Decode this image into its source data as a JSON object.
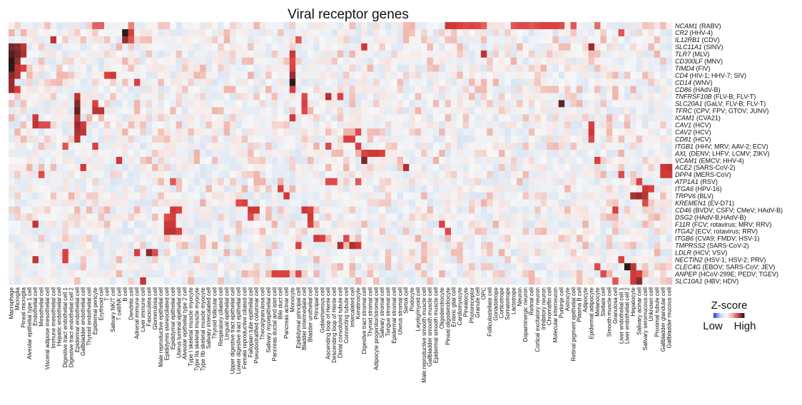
{
  "chart_data": {
    "type": "heatmap",
    "title": "Viral receptor genes",
    "rows": [
      {
        "gene": "NCAM1",
        "virus": "(RABV)"
      },
      {
        "gene": "CR2",
        "virus": "(HHV-4)"
      },
      {
        "gene": "IL12RB1",
        "virus": "(CDV)"
      },
      {
        "gene": "SLC11A1",
        "virus": "(SINV)"
      },
      {
        "gene": "TLR7",
        "virus": "(MLV)"
      },
      {
        "gene": "CD300LF",
        "virus": "(MNV)"
      },
      {
        "gene": "TIMD4",
        "virus": "(FIV)"
      },
      {
        "gene": "CD4",
        "virus": "(HIV-1; HHV-7; SIV)"
      },
      {
        "gene": "CD14",
        "virus": "(WNV)"
      },
      {
        "gene": "CD86",
        "virus": "(HAdV-B)"
      },
      {
        "gene": "TNFRSF10B",
        "virus": "(FLV-B; FLV-T)"
      },
      {
        "gene": "SLC20A1",
        "virus": "(GaLV; FLV-B; FLV-T)"
      },
      {
        "gene": "TFRC",
        "virus": "(CPV; FPV; GTOV; JUNV)"
      },
      {
        "gene": "ICAM1",
        "virus": "(CVA21)"
      },
      {
        "gene": "CAV1",
        "virus": "(HCV)"
      },
      {
        "gene": "CAV2",
        "virus": "(HCV)"
      },
      {
        "gene": "CD81",
        "virus": "(HCV)"
      },
      {
        "gene": "ITGB1",
        "virus": "(HHV; MRV; AAV-2; ECV)"
      },
      {
        "gene": "AXL",
        "virus": "(DENV; LHFV; LCMV; ZIKV)"
      },
      {
        "gene": "VCAM1",
        "virus": "(EMCV; HHV-4)"
      },
      {
        "gene": "ACE2",
        "virus": "(SARS-CoV-2)"
      },
      {
        "gene": "DPP4",
        "virus": "(MERS-CoV)"
      },
      {
        "gene": "ATP1A1",
        "virus": "(RSV)"
      },
      {
        "gene": "ITGA6",
        "virus": "(HPV-16)"
      },
      {
        "gene": "TRPV6",
        "virus": "(BLV)"
      },
      {
        "gene": "KREMEN1",
        "virus": "(EV-D71)"
      },
      {
        "gene": "CD46",
        "virus": "(BVDV; CSFV; CMeV; HAdV-B)"
      },
      {
        "gene": "DSG2",
        "virus": "(HAdV-B,HAdV-B)"
      },
      {
        "gene": "F11R",
        "virus": "(FCV; rotavirus; MRV; RRV)"
      },
      {
        "gene": "ITGA2",
        "virus": "(ECV; rotavirus; RRV)"
      },
      {
        "gene": "ITGB6",
        "virus": "(CVA9; FMDV; HSV-1)"
      },
      {
        "gene": "TMPRSS2",
        "virus": "(SARS-CoV-2)"
      },
      {
        "gene": "LDLR",
        "virus": "(HCV; VSV)"
      },
      {
        "gene": "NECTIN2",
        "virus": "(HSV-1; HSV-2; PRV)"
      },
      {
        "gene": "CLEC4G",
        "virus": "(EBOV; SARS-CoV; JEV)"
      },
      {
        "gene": "ANPEP",
        "virus": "(HCoV-299E; PEDV; TGEV)"
      },
      {
        "gene": "SLC10A1",
        "virus": "(HBV; HDV)"
      }
    ],
    "columns": [
      "Macrophage",
      "Microglia",
      "Pineal microglia",
      "Alveolar epithelial type 1 cell",
      "Endothelial cell",
      "Mesothelial cell",
      "Visceral adipose mesothelial cell",
      "Immune mesothelial cell",
      "Hepatic endothelial cell",
      "Digestive tract endothelial cell 1",
      "Digestive tract endothelial cell 2",
      "Epidermal endothelial cell",
      "Gallbladder endothelial cell",
      "Thyroid endothelial cell",
      "Epidermal pericyte",
      "Erythroid cell",
      "T cell",
      "Salivary NK/T cell",
      "T cell/NK cell",
      "B cell",
      "Dendritic cell",
      "Adrenal immune cell",
      "Liver immune cell",
      "Fasciculata cell",
      "Glomerulosa cell",
      "Male reproductive epithelial cell",
      "Epididymis stereociliated cell",
      "Epididymal epithelial cell",
      "Uterus luminal epithelial cell",
      "Alveolar epithelial type 2 cell",
      "Type I skeletal muscle myocyte",
      "Type IIa skeletal muscle myocyte",
      "Type IIb skeletal muscle myocyte",
      "Salivary intercalated cell",
      "Thyroid follicular cell",
      "Respiratory ciliated cell",
      "Lingual epithelial cell",
      "Upper digestive tract epithelial cell",
      "Lower digestive tract epithelial cell",
      "Female reproductive ciliated cell",
      "Fallopian tube epithelial cell",
      "Pseudostratified columnar cell",
      "Theca/granulosa cell",
      "Salivary myoepithelial cell",
      "Pancreas ductal and islet cell",
      "Bile duct cell",
      "Pancreas acinar cell",
      "Monocyte",
      "Epididymal principal cell",
      "Bladder intermediate cell",
      "Bladder urothelial cell",
      "Principal cell",
      "Goblet/serous cell",
      "Ascending loop of Henle cell",
      "Descending loop of Henle cell",
      "Distal convoluted tubule cell",
      "Connecting tubule cell",
      "Intercalated cell",
      "Keratinocyte",
      "Digestive tract stromal cell",
      "Thyroid stromal cell",
      "Adipocyte progenitor/stromal cell",
      "Salivary stromal cell",
      "Tongue stromal cell",
      "Epidermal stromal cell",
      "Uterus stromal cell",
      "Sertoli cell",
      "Podocyte",
      "Leydig/myoid cell",
      "Male reproductive smooth muscle cell",
      "Gallbladder smooth muscle cell",
      "Epidermal smooth muscle cell",
      "Oligodendrocyte",
      "Pineal oligodendrocyte",
      "Enteric glial cell",
      "Cardiomyocyte",
      "Pinealocyte",
      "Photoreceptor",
      "Granule cell",
      "OPC",
      "Folliculostellate cell",
      "Gonadotrope",
      "Corticotrope",
      "Somatotrope",
      "Lactotrope",
      "Neuron",
      "Dopaminergic neuron",
      "Retinal cell",
      "Cortical excitatory neuron",
      "Inhibitory neuron",
      "Chromaffin cell",
      "Molecular interneuron",
      "Purkinje cell",
      "Astrocyte",
      "Retinal pigment epithelial cell",
      "Plasma B cell",
      "Adipocyte",
      "Epidermal adipocyte",
      "Melanocyte",
      "Stellate cell",
      "Smooth muscle cell",
      "Granulosa cell",
      "Liver endothelial cell 1",
      "Liver endothelial cell 2",
      "Hepatocyte",
      "Salivary acinar cell",
      "Salivary seromucous cell",
      "Unknown cell",
      "Proximal tubule cell",
      "Gallbladder glandular cell",
      "Gallbladder mucous cell"
    ],
    "colorbar": {
      "title": "Z-score",
      "low_label": "Low",
      "high_label": "High",
      "colors": [
        "#3b34e0",
        "#c8daf0",
        "#f7f7f7",
        "#f0b2a8",
        "#d93a3a",
        "#2b1a1a"
      ]
    },
    "highlights": [
      {
        "r": 0,
        "c": 14,
        "v": 0.35
      },
      {
        "r": 0,
        "c": 15,
        "v": 0.35
      },
      {
        "r": 0,
        "c": 20,
        "v": 0.2
      },
      {
        "r": 0,
        "c": 73,
        "v": 0.55
      },
      {
        "r": 0,
        "c": 74,
        "v": 0.55
      },
      {
        "r": 0,
        "c": 75,
        "v": 0.5
      },
      {
        "r": 0,
        "c": 76,
        "v": 0.45
      },
      {
        "r": 0,
        "c": 77,
        "v": 0.5
      },
      {
        "r": 0,
        "c": 78,
        "v": 0.45
      },
      {
        "r": 0,
        "c": 79,
        "v": 0.35
      },
      {
        "r": 0,
        "c": 84,
        "v": 0.4
      },
      {
        "r": 0,
        "c": 85,
        "v": 0.45
      },
      {
        "r": 0,
        "c": 86,
        "v": 0.45
      },
      {
        "r": 0,
        "c": 87,
        "v": 0.4
      },
      {
        "r": 0,
        "c": 88,
        "v": 0.45
      },
      {
        "r": 0,
        "c": 89,
        "v": 0.5
      },
      {
        "r": 0,
        "c": 90,
        "v": 0.5
      },
      {
        "r": 0,
        "c": 91,
        "v": 0.5
      },
      {
        "r": 0,
        "c": 92,
        "v": 0.45
      },
      {
        "r": 0,
        "c": 94,
        "v": 0.4
      },
      {
        "r": 0,
        "c": 98,
        "v": 0.3
      },
      {
        "r": 1,
        "c": 19,
        "v": 1.0
      },
      {
        "r": 1,
        "c": 20,
        "v": 0.5
      },
      {
        "r": 1,
        "c": 102,
        "v": 0.4
      },
      {
        "r": 2,
        "c": 7,
        "v": 0.6
      },
      {
        "r": 2,
        "c": 19,
        "v": 0.7
      },
      {
        "r": 2,
        "c": 20,
        "v": 0.4
      },
      {
        "r": 2,
        "c": 48,
        "v": 0.4
      },
      {
        "r": 3,
        "c": 0,
        "v": 0.8
      },
      {
        "r": 3,
        "c": 1,
        "v": 0.75
      },
      {
        "r": 3,
        "c": 2,
        "v": 0.6
      },
      {
        "r": 3,
        "c": 59,
        "v": 0.55
      },
      {
        "r": 3,
        "c": 97,
        "v": 0.7
      },
      {
        "r": 4,
        "c": 0,
        "v": 0.9
      },
      {
        "r": 4,
        "c": 1,
        "v": 0.8
      },
      {
        "r": 4,
        "c": 2,
        "v": 0.65
      },
      {
        "r": 4,
        "c": 47,
        "v": 0.55
      },
      {
        "r": 4,
        "c": 79,
        "v": 0.6
      },
      {
        "r": 5,
        "c": 0,
        "v": 1.0
      },
      {
        "r": 5,
        "c": 1,
        "v": 0.7
      },
      {
        "r": 5,
        "c": 47,
        "v": 0.45
      },
      {
        "r": 6,
        "c": 0,
        "v": 1.0
      },
      {
        "r": 6,
        "c": 1,
        "v": 0.6
      },
      {
        "r": 6,
        "c": 2,
        "v": 0.5
      },
      {
        "r": 6,
        "c": 47,
        "v": 0.5
      },
      {
        "r": 7,
        "c": 0,
        "v": 0.75
      },
      {
        "r": 7,
        "c": 1,
        "v": 0.6
      },
      {
        "r": 7,
        "c": 16,
        "v": 0.5
      },
      {
        "r": 7,
        "c": 17,
        "v": 0.55
      },
      {
        "r": 7,
        "c": 47,
        "v": 0.7
      },
      {
        "r": 8,
        "c": 0,
        "v": 0.7
      },
      {
        "r": 8,
        "c": 47,
        "v": 1.0
      },
      {
        "r": 8,
        "c": 21,
        "v": 0.5
      },
      {
        "r": 9,
        "c": 0,
        "v": 0.7
      },
      {
        "r": 9,
        "c": 1,
        "v": 0.5
      },
      {
        "r": 9,
        "c": 47,
        "v": 0.5
      },
      {
        "r": 10,
        "c": 11,
        "v": 0.6
      },
      {
        "r": 10,
        "c": 49,
        "v": 0.45
      },
      {
        "r": 10,
        "c": 53,
        "v": 0.65
      },
      {
        "r": 10,
        "c": 55,
        "v": 0.5
      },
      {
        "r": 11,
        "c": 11,
        "v": 0.75
      },
      {
        "r": 11,
        "c": 14,
        "v": 0.5
      },
      {
        "r": 11,
        "c": 92,
        "v": 0.85
      },
      {
        "r": 11,
        "c": 49,
        "v": 0.5
      },
      {
        "r": 12,
        "c": 11,
        "v": 0.85
      },
      {
        "r": 12,
        "c": 14,
        "v": 0.6
      },
      {
        "r": 12,
        "c": 15,
        "v": 0.6
      },
      {
        "r": 12,
        "c": 49,
        "v": 0.45
      },
      {
        "r": 13,
        "c": 4,
        "v": 0.55
      },
      {
        "r": 13,
        "c": 11,
        "v": 0.6
      },
      {
        "r": 13,
        "c": 47,
        "v": 0.55
      },
      {
        "r": 14,
        "c": 4,
        "v": 0.6
      },
      {
        "r": 14,
        "c": 5,
        "v": 0.45
      },
      {
        "r": 14,
        "c": 6,
        "v": 0.45
      },
      {
        "r": 14,
        "c": 11,
        "v": 0.7
      },
      {
        "r": 14,
        "c": 12,
        "v": 0.55
      },
      {
        "r": 14,
        "c": 97,
        "v": 0.5
      },
      {
        "r": 15,
        "c": 11,
        "v": 0.65
      },
      {
        "r": 15,
        "c": 12,
        "v": 0.6
      },
      {
        "r": 15,
        "c": 58,
        "v": 0.45
      },
      {
        "r": 15,
        "c": 97,
        "v": 0.55
      },
      {
        "r": 16,
        "c": 11,
        "v": 0.6
      },
      {
        "r": 16,
        "c": 56,
        "v": 0.5
      },
      {
        "r": 16,
        "c": 57,
        "v": 0.5
      },
      {
        "r": 16,
        "c": 97,
        "v": 0.45
      },
      {
        "r": 17,
        "c": 9,
        "v": 0.4
      },
      {
        "r": 17,
        "c": 14,
        "v": 0.5
      },
      {
        "r": 17,
        "c": 53,
        "v": 0.45
      },
      {
        "r": 17,
        "c": 58,
        "v": 0.5
      },
      {
        "r": 18,
        "c": 60,
        "v": 0.55
      },
      {
        "r": 18,
        "c": 61,
        "v": 0.55
      },
      {
        "r": 18,
        "c": 62,
        "v": 0.5
      },
      {
        "r": 18,
        "c": 59,
        "v": 0.5
      },
      {
        "r": 19,
        "c": 18,
        "v": 0.55
      },
      {
        "r": 19,
        "c": 59,
        "v": 0.8
      },
      {
        "r": 19,
        "c": 98,
        "v": 0.5
      },
      {
        "r": 20,
        "c": 12,
        "v": 0.55
      },
      {
        "r": 20,
        "c": 66,
        "v": 0.65
      },
      {
        "r": 20,
        "c": 109,
        "v": 0.55
      },
      {
        "r": 20,
        "c": 110,
        "v": 0.6
      },
      {
        "r": 20,
        "c": 111,
        "v": 0.65
      },
      {
        "r": 21,
        "c": 5,
        "v": 0.45
      },
      {
        "r": 21,
        "c": 102,
        "v": 0.45
      },
      {
        "r": 21,
        "c": 109,
        "v": 0.55
      },
      {
        "r": 21,
        "c": 110,
        "v": 0.55
      },
      {
        "r": 21,
        "c": 111,
        "v": 0.6
      },
      {
        "r": 22,
        "c": 27,
        "v": 0.4
      },
      {
        "r": 22,
        "c": 53,
        "v": 0.45
      },
      {
        "r": 22,
        "c": 54,
        "v": 0.45
      },
      {
        "r": 22,
        "c": 58,
        "v": 0.4
      },
      {
        "r": 22,
        "c": 105,
        "v": 0.5
      },
      {
        "r": 23,
        "c": 45,
        "v": 0.5
      },
      {
        "r": 23,
        "c": 106,
        "v": 0.55
      },
      {
        "r": 23,
        "c": 107,
        "v": 0.5
      },
      {
        "r": 24,
        "c": 46,
        "v": 0.55
      },
      {
        "r": 24,
        "c": 104,
        "v": 0.65
      },
      {
        "r": 24,
        "c": 105,
        "v": 0.7
      },
      {
        "r": 24,
        "c": 106,
        "v": 0.6
      },
      {
        "r": 25,
        "c": 38,
        "v": 0.45
      },
      {
        "r": 25,
        "c": 39,
        "v": 0.5
      },
      {
        "r": 25,
        "c": 106,
        "v": 0.45
      },
      {
        "r": 26,
        "c": 27,
        "v": 0.55
      },
      {
        "r": 26,
        "c": 28,
        "v": 0.5
      },
      {
        "r": 26,
        "c": 40,
        "v": 0.55
      },
      {
        "r": 26,
        "c": 41,
        "v": 0.55
      },
      {
        "r": 26,
        "c": 49,
        "v": 0.55
      },
      {
        "r": 26,
        "c": 50,
        "v": 0.5
      },
      {
        "r": 26,
        "c": 101,
        "v": 0.5
      },
      {
        "r": 27,
        "c": 26,
        "v": 0.45
      },
      {
        "r": 27,
        "c": 27,
        "v": 0.5
      },
      {
        "r": 27,
        "c": 40,
        "v": 0.45
      },
      {
        "r": 27,
        "c": 50,
        "v": 0.55
      },
      {
        "r": 28,
        "c": 4,
        "v": 0.6
      },
      {
        "r": 28,
        "c": 26,
        "v": 0.55
      },
      {
        "r": 28,
        "c": 27,
        "v": 0.55
      },
      {
        "r": 28,
        "c": 50,
        "v": 0.5
      },
      {
        "r": 28,
        "c": 72,
        "v": 0.5
      },
      {
        "r": 29,
        "c": 26,
        "v": 0.6
      },
      {
        "r": 29,
        "c": 27,
        "v": 0.6
      },
      {
        "r": 29,
        "c": 28,
        "v": 0.5
      },
      {
        "r": 29,
        "c": 73,
        "v": 0.45
      },
      {
        "r": 30,
        "c": 51,
        "v": 0.55
      },
      {
        "r": 30,
        "c": 52,
        "v": 0.5
      },
      {
        "r": 30,
        "c": 56,
        "v": 0.45
      },
      {
        "r": 31,
        "c": 48,
        "v": 0.5
      },
      {
        "r": 31,
        "c": 55,
        "v": 0.65
      },
      {
        "r": 31,
        "c": 57,
        "v": 0.65
      },
      {
        "r": 31,
        "c": 58,
        "v": 0.55
      },
      {
        "r": 32,
        "c": 9,
        "v": 0.5
      },
      {
        "r": 32,
        "c": 21,
        "v": 0.5
      },
      {
        "r": 32,
        "c": 23,
        "v": 0.75
      },
      {
        "r": 32,
        "c": 24,
        "v": 0.45
      },
      {
        "r": 33,
        "c": 4,
        "v": 0.6
      },
      {
        "r": 33,
        "c": 9,
        "v": 0.5
      },
      {
        "r": 33,
        "c": 102,
        "v": 0.5
      },
      {
        "r": 34,
        "c": 103,
        "v": 1.0
      },
      {
        "r": 34,
        "c": 104,
        "v": 0.6
      },
      {
        "r": 34,
        "c": 98,
        "v": 0.45
      },
      {
        "r": 35,
        "c": 44,
        "v": 0.5
      },
      {
        "r": 35,
        "c": 45,
        "v": 0.5
      },
      {
        "r": 35,
        "c": 46,
        "v": 0.5
      },
      {
        "r": 35,
        "c": 48,
        "v": 0.45
      },
      {
        "r": 35,
        "c": 99,
        "v": 0.45
      },
      {
        "r": 35,
        "c": 104,
        "v": 0.55
      },
      {
        "r": 35,
        "c": 105,
        "v": 0.5
      },
      {
        "r": 36,
        "c": 22,
        "v": 0.6
      },
      {
        "r": 36,
        "c": 104,
        "v": 0.55
      },
      {
        "r": 36,
        "c": 105,
        "v": 0.75
      },
      {
        "r": 36,
        "c": 101,
        "v": 0.4
      }
    ]
  }
}
